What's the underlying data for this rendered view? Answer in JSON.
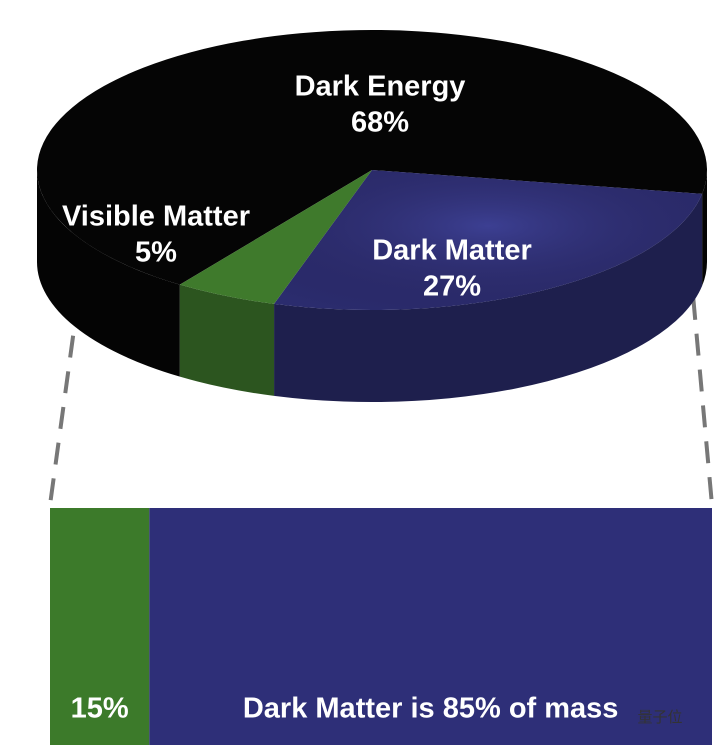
{
  "chart_data": [
    {
      "type": "pie3d",
      "categories": [
        "Dark Energy",
        "Dark Matter",
        "Visible Matter"
      ],
      "values": [
        68,
        27,
        5
      ],
      "value_labels": [
        "68%",
        "27%",
        "5%"
      ],
      "colors": [
        "#050505",
        "#2b2c6e",
        "#3f7a2c"
      ]
    },
    {
      "type": "stacked_bar",
      "values": [
        15,
        85
      ],
      "value_labels": [
        "15%",
        "Dark Matter is 85% of mass"
      ],
      "colors": [
        "#3c7a2a",
        "#2e2f78"
      ]
    }
  ],
  "watermark": "量子位"
}
